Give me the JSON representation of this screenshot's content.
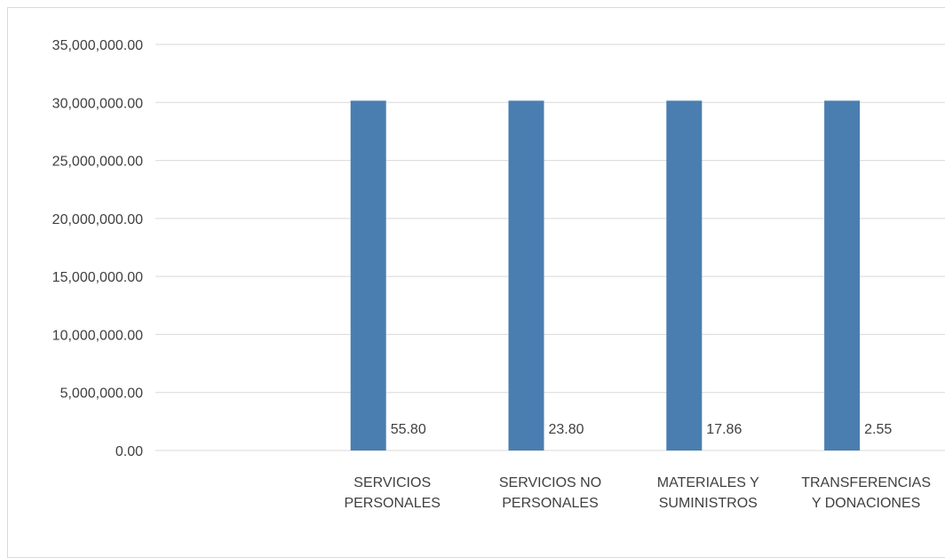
{
  "chart_data": {
    "type": "bar",
    "categories": [
      [
        "SERVICIOS",
        "PERSONALES"
      ],
      [
        "SERVICIOS NO",
        "PERSONALES"
      ],
      [
        "MATERIALES Y",
        "SUMINISTROS"
      ],
      [
        "TRANSFERENCIAS",
        "Y DONACIONES"
      ]
    ],
    "series": [
      {
        "values": [
          30150000,
          30150000,
          30150000,
          30150000
        ]
      },
      {
        "values": [
          55.8,
          23.8,
          17.86,
          2.55
        ]
      }
    ],
    "data_labels": [
      "55.80",
      "23.80",
      "17.86",
      "2.55"
    ],
    "yticks": [
      0,
      5000000,
      10000000,
      15000000,
      20000000,
      25000000,
      30000000,
      35000000
    ],
    "ytick_labels": [
      "0.00",
      "5,000,000.00",
      "10,000,000.00",
      "15,000,000.00",
      "20,000,000.00",
      "25,000,000.00",
      "30,000,000.00",
      "35,000,000.00"
    ],
    "ylim": [
      0,
      35000000
    ],
    "grid": true,
    "bar_color": "#4a7eb0",
    "title": "",
    "xlabel": "",
    "ylabel": ""
  }
}
